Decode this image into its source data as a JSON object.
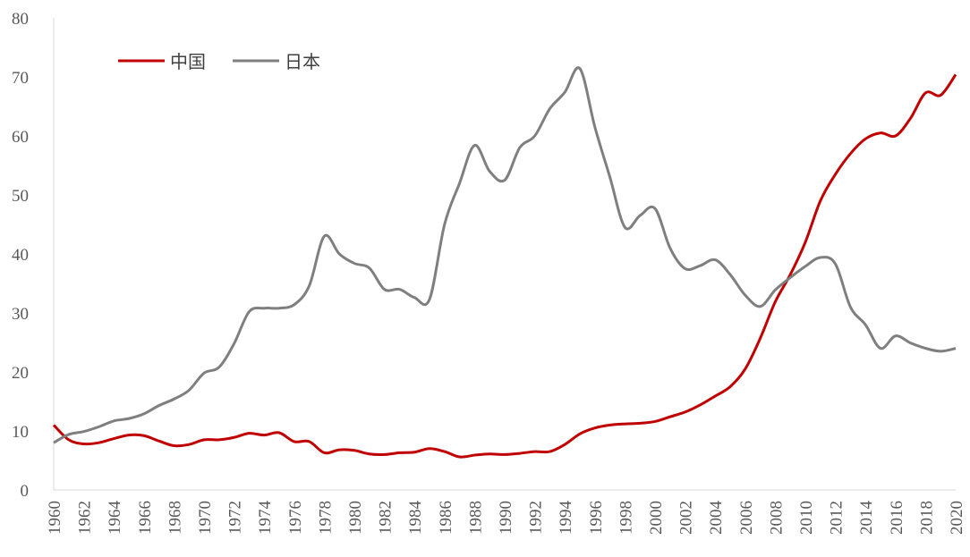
{
  "chart_data": {
    "type": "line",
    "title": "",
    "xlabel": "",
    "ylabel": "",
    "ylim": [
      0,
      80
    ],
    "yticks": [
      0,
      10,
      20,
      30,
      40,
      50,
      60,
      70,
      80
    ],
    "xlim": [
      1960,
      2020
    ],
    "xticks": [
      1960,
      1962,
      1964,
      1966,
      1968,
      1970,
      1972,
      1974,
      1976,
      1978,
      1980,
      1982,
      1984,
      1986,
      1988,
      1990,
      1992,
      1994,
      1996,
      1998,
      2000,
      2002,
      2004,
      2006,
      2008,
      2010,
      2012,
      2014,
      2016,
      2018,
      2020
    ],
    "grid": false,
    "legend": "top-left",
    "x": [
      1960,
      1961,
      1962,
      1963,
      1964,
      1965,
      1966,
      1967,
      1968,
      1969,
      1970,
      1971,
      1972,
      1973,
      1974,
      1975,
      1976,
      1977,
      1978,
      1979,
      1980,
      1981,
      1982,
      1983,
      1984,
      1985,
      1986,
      1987,
      1988,
      1989,
      1990,
      1991,
      1992,
      1993,
      1994,
      1995,
      1996,
      1997,
      1998,
      1999,
      2000,
      2001,
      2002,
      2003,
      2004,
      2005,
      2006,
      2007,
      2008,
      2009,
      2010,
      2011,
      2012,
      2013,
      2014,
      2015,
      2016,
      2017,
      2018,
      2019,
      2020
    ],
    "series": [
      {
        "name": "中国",
        "color": "#c00000",
        "values": [
          11.0,
          8.5,
          7.8,
          8.0,
          8.7,
          9.3,
          9.2,
          8.3,
          7.5,
          7.7,
          8.5,
          8.5,
          8.9,
          9.6,
          9.3,
          9.7,
          8.2,
          8.2,
          6.3,
          6.8,
          6.7,
          6.1,
          6.0,
          6.3,
          6.4,
          7.0,
          6.5,
          5.6,
          5.9,
          6.1,
          6.0,
          6.2,
          6.5,
          6.5,
          7.7,
          9.5,
          10.5,
          11.0,
          11.2,
          11.3,
          11.6,
          12.4,
          13.2,
          14.4,
          15.9,
          17.5,
          20.5,
          25.7,
          31.9,
          36.5,
          42.0,
          49.0,
          53.5,
          57.0,
          59.5,
          60.5,
          60.0,
          63.0,
          67.3,
          66.9,
          70.4
        ]
      },
      {
        "name": "日本",
        "color": "#7f7f7f",
        "values": [
          8.0,
          9.4,
          9.9,
          10.7,
          11.7,
          12.1,
          12.9,
          14.3,
          15.4,
          16.9,
          19.8,
          20.8,
          24.8,
          30.2,
          30.8,
          30.8,
          31.4,
          34.6,
          43.0,
          40.0,
          38.4,
          37.6,
          34.0,
          34.0,
          32.6,
          32.3,
          45.0,
          52.0,
          58.4,
          54.0,
          52.5,
          58.0,
          60.0,
          64.6,
          67.4,
          71.4,
          61.5,
          53.0,
          44.5,
          46.5,
          47.7,
          41.0,
          37.5,
          38.0,
          39.0,
          36.5,
          33.0,
          31.1,
          33.9,
          36.0,
          37.9,
          39.4,
          38.3,
          31.0,
          28.0,
          24.0,
          26.1,
          24.9,
          24.0,
          23.5,
          24.0
        ]
      }
    ]
  }
}
